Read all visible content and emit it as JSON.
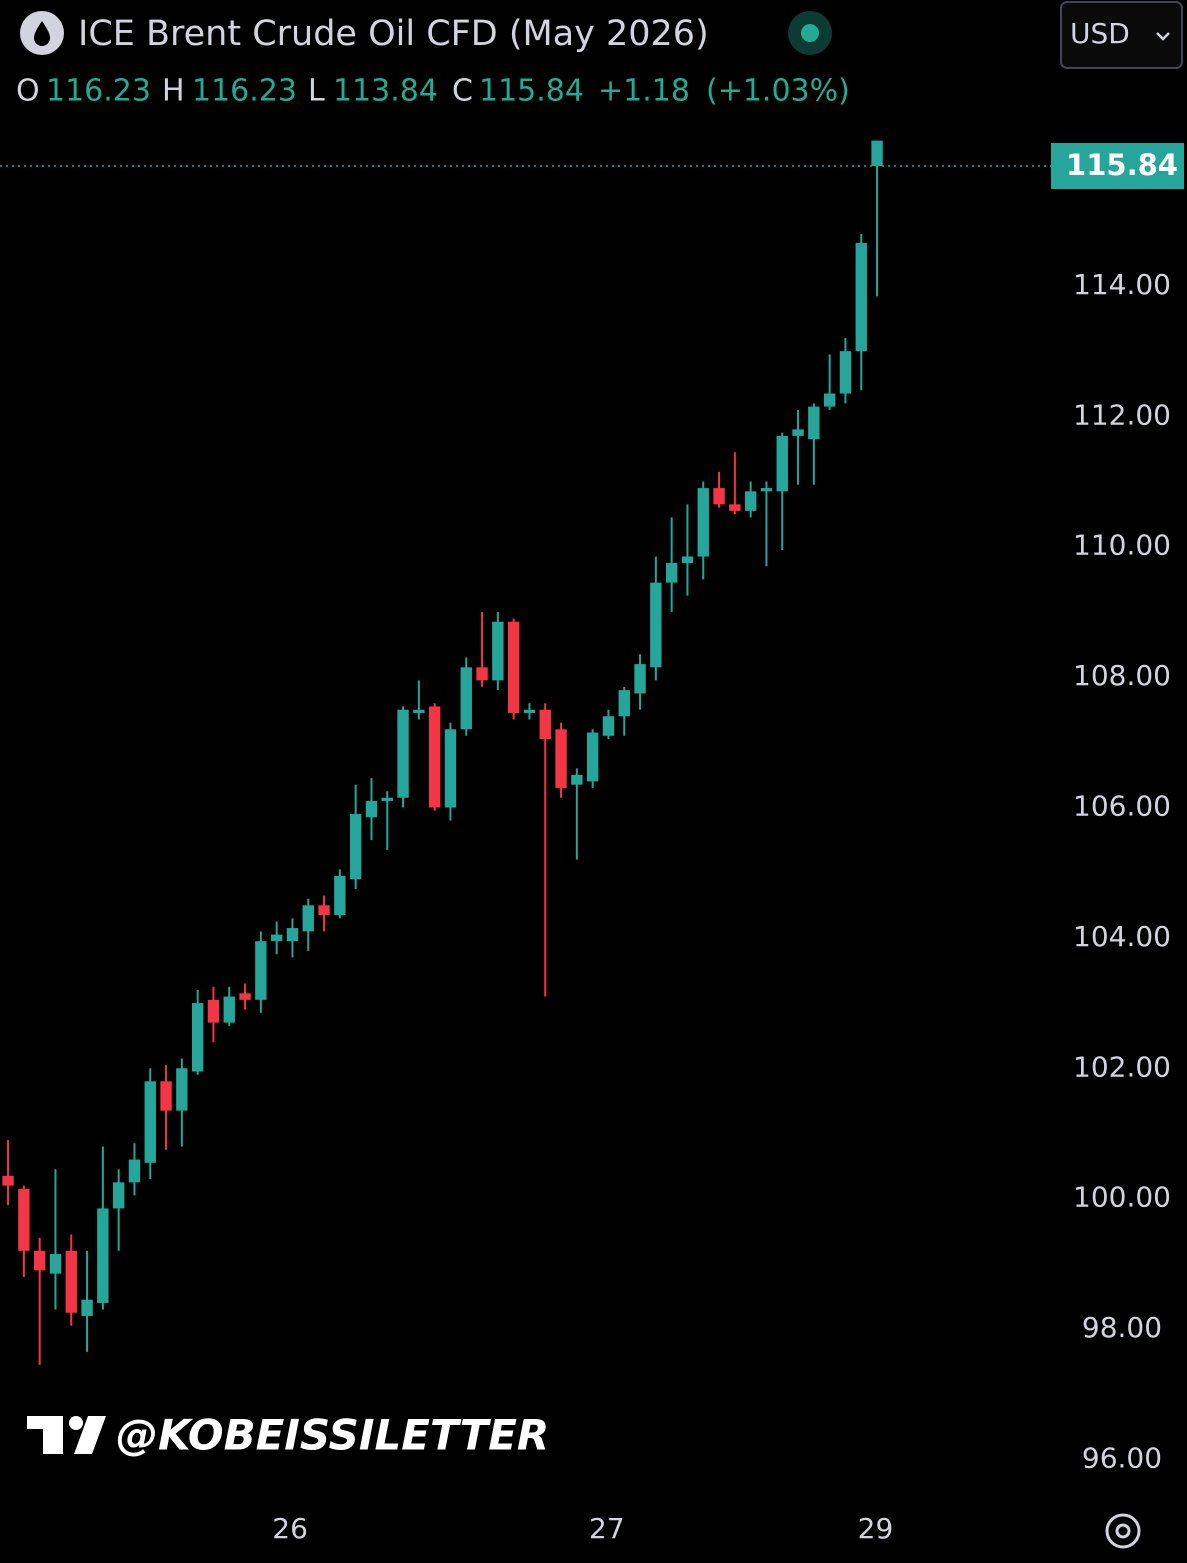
{
  "header": {
    "title": "ICE Brent Crude Oil CFD (May 2026)",
    "currency": "USD",
    "open_label": "O",
    "high_label": "H",
    "low_label": "L",
    "close_label": "C",
    "change": "+1.18",
    "change_percent": "(+1.03%)"
  },
  "watermark": "@KOBEISSILETTER",
  "chart_data": {
    "type": "candlestick",
    "up_color": "#26a69a",
    "down_color": "#f23645",
    "open": [
      100.35,
      100.15,
      99.2,
      98.85,
      99.2,
      98.2,
      98.4,
      99.85,
      100.25,
      100.55,
      101.8,
      101.35,
      101.95,
      103.05,
      102.7,
      103.15,
      103.05,
      103.95,
      103.95,
      104.1,
      104.5,
      104.35,
      104.9,
      105.85,
      106.1,
      106.15,
      107.45,
      107.55,
      106,
      107.2,
      108.15,
      107.95,
      108.85,
      107.45,
      107.5,
      107.2,
      106.35,
      106.4,
      107.1,
      107.4,
      107.75,
      108.15,
      109.45,
      109.75,
      109.85,
      110.9,
      110.65,
      110.55,
      110.85,
      110.85,
      111.7,
      111.65,
      112.15,
      112.35,
      113.0,
      116.23
    ],
    "high": [
      100.9,
      100.2,
      99.4,
      100.45,
      99.45,
      99.2,
      100.8,
      100.45,
      100.85,
      102,
      102.05,
      102.15,
      103.2,
      103.25,
      103.25,
      103.3,
      104.1,
      104.25,
      104.3,
      104.6,
      104.65,
      105.05,
      106.35,
      106.45,
      106.25,
      107.55,
      107.95,
      107.6,
      107.3,
      108.3,
      109.0,
      109.0,
      108.9,
      107.6,
      107.6,
      107.3,
      106.6,
      107.2,
      107.5,
      107.85,
      108.35,
      109.85,
      110.45,
      110.65,
      111.0,
      111.15,
      111.45,
      111.0,
      111.0,
      111.75,
      112.1,
      112.2,
      112.95,
      113.2,
      114.8,
      116.23
    ],
    "low": [
      99.9,
      98.8,
      97.45,
      98.3,
      98.05,
      97.65,
      98.3,
      99.2,
      100.05,
      100.3,
      100.75,
      100.8,
      101.9,
      102.4,
      102.65,
      102.9,
      102.85,
      103.75,
      103.7,
      103.8,
      104.1,
      104.3,
      104.75,
      105.5,
      105.35,
      106.0,
      107.35,
      105.95,
      105.8,
      107.1,
      107.85,
      107.8,
      107.35,
      107.35,
      103.1,
      106.15,
      105.2,
      106.3,
      107.05,
      107.1,
      107.5,
      107.95,
      109.0,
      109.25,
      109.5,
      110.6,
      110.5,
      110.45,
      109.7,
      109.95,
      110.95,
      110.95,
      112.1,
      112.2,
      112.4,
      113.84
    ],
    "close": [
      100.2,
      99.2,
      98.9,
      99.15,
      98.25,
      98.45,
      99.85,
      100.25,
      100.6,
      101.8,
      101.35,
      102,
      103.0,
      102.7,
      103.1,
      103.05,
      103.95,
      104.05,
      104.15,
      104.5,
      104.35,
      104.95,
      105.9,
      106.1,
      106.15,
      107.5,
      107.5,
      106,
      107.2,
      108.15,
      107.95,
      108.85,
      107.45,
      107.5,
      107.05,
      106.3,
      106.5,
      107.15,
      107.4,
      107.8,
      108.2,
      109.45,
      109.75,
      109.85,
      110.9,
      110.65,
      110.55,
      110.85,
      110.9,
      111.7,
      111.8,
      112.15,
      112.35,
      113.0,
      114.66,
      115.84
    ],
    "xlim": [
      -0.51,
      65.63
    ],
    "xticks": [
      {
        "value": 17.85,
        "label": "26"
      },
      {
        "value": 37.9,
        "label": "27"
      },
      {
        "value": 54.9,
        "label": "29"
      }
    ],
    "ylim": [
      95.5,
      116.5
    ],
    "yticks": [
      {
        "value": 96,
        "label": "96.00"
      },
      {
        "value": 98,
        "label": "98.00"
      },
      {
        "value": 100,
        "label": "100.00"
      },
      {
        "value": 102,
        "label": "102.00"
      },
      {
        "value": 104,
        "label": "104.00"
      },
      {
        "value": 106,
        "label": "106.00"
      },
      {
        "value": 108,
        "label": "108.00"
      },
      {
        "value": 110,
        "label": "110.00"
      },
      {
        "value": 112,
        "label": "112.00"
      },
      {
        "value": 114,
        "label": "114.00"
      }
    ]
  }
}
